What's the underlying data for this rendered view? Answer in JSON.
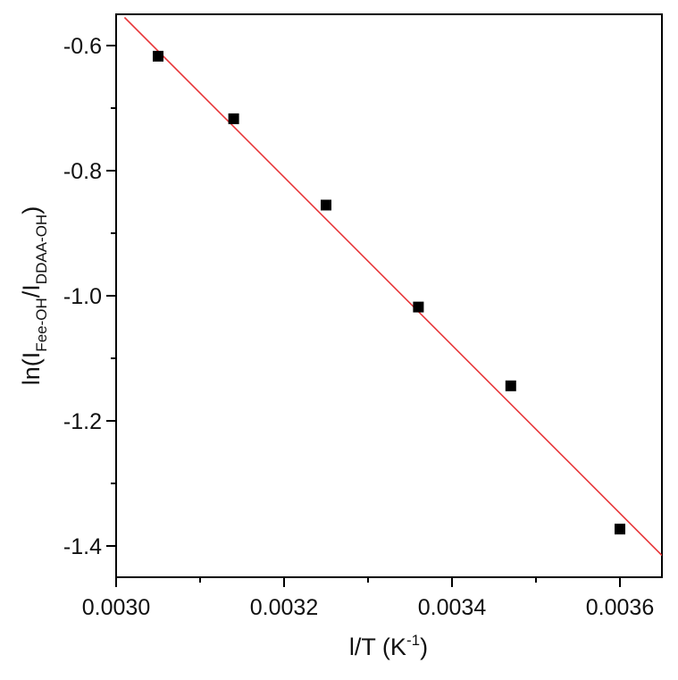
{
  "chart_data": {
    "type": "scatter",
    "title": "",
    "xlabel": {
      "main": "l/T (K",
      "sup": "-1",
      "close": ")"
    },
    "ylabel": {
      "prefix": "ln(I",
      "sub1": "Fee-OH",
      "mid": "/I",
      "sub2": "DDAA-OH",
      "suffix": ")"
    },
    "xlim": [
      0.003,
      0.00365
    ],
    "ylim": [
      -1.45,
      -0.55
    ],
    "x_ticks": [
      "0.0030",
      "0.0032",
      "0.0034",
      "0.0036"
    ],
    "x_tick_values": [
      0.003,
      0.0032,
      0.0034,
      0.0036
    ],
    "x_minor_tick_values": [
      0.0031,
      0.0033,
      0.0035
    ],
    "y_ticks": [
      "-0.6",
      "-0.8",
      "-1.0",
      "-1.2",
      "-1.4"
    ],
    "y_tick_values": [
      -0.6,
      -0.8,
      -1.0,
      -1.2,
      -1.4
    ],
    "y_minor_tick_values": [
      -0.7,
      -0.9,
      -1.1,
      -1.3
    ],
    "grid": false,
    "series": [
      {
        "type": "scatter",
        "marker": "square",
        "color": "#000000",
        "x": [
          0.00305,
          0.00314,
          0.00325,
          0.00336,
          0.00347,
          0.0036
        ],
        "y": [
          -0.617,
          -0.717,
          -0.855,
          -1.018,
          -1.144,
          -1.373
        ]
      },
      {
        "type": "line",
        "color": "#e8373a",
        "x": [
          0.00301,
          0.00365
        ],
        "y": [
          -0.555,
          -1.415
        ]
      }
    ]
  }
}
